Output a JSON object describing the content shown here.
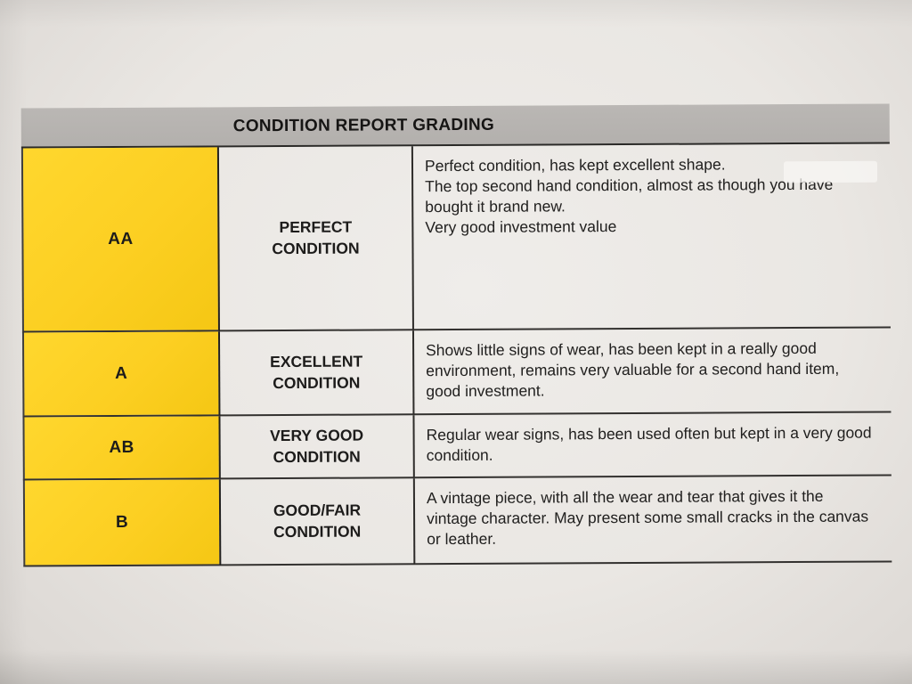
{
  "table": {
    "header": {
      "title": "CONDITION REPORT GRADING"
    },
    "grade_color": "#fccf22",
    "rows": [
      {
        "grade": "AA",
        "condition": "PERFECT CONDITION",
        "paragraphs": [
          "Perfect condition, has kept excellent shape.",
          "The top second hand condition, almost as though you have bought it brand new.",
          "Very good investment value"
        ]
      },
      {
        "grade": "A",
        "condition": "EXCELLENT CONDITION",
        "paragraphs": [
          "Shows little signs of wear, has been kept in a really good environment, remains very valuable for a second hand item, good investment."
        ]
      },
      {
        "grade": "AB",
        "condition": "VERY GOOD CONDITION",
        "paragraphs": [
          "Regular wear signs, has been used often but kept in a very good condition."
        ]
      },
      {
        "grade": "B",
        "condition": "GOOD/FAIR CONDITION",
        "paragraphs": [
          "A vintage piece, with all the wear and tear that gives it the vintage character. May present some small cracks in the canvas or leather."
        ]
      }
    ]
  }
}
